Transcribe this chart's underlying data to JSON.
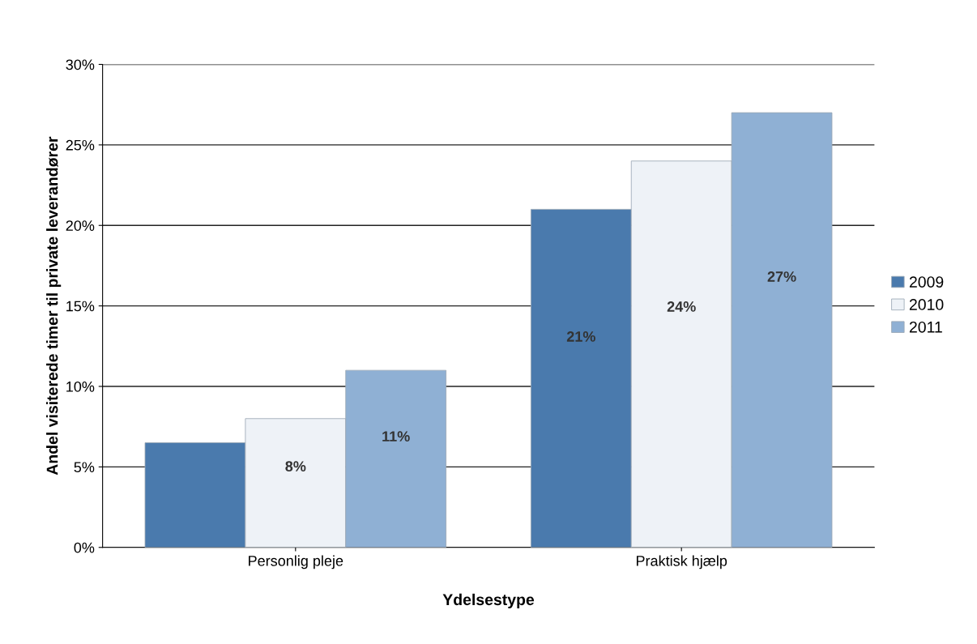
{
  "chart_data": {
    "type": "bar",
    "xlabel": "Ydelsestype",
    "ylabel": "Andel visiterede timer til private leverandører",
    "categories": [
      "Personlig pleje",
      "Praktisk hjælp"
    ],
    "series": [
      {
        "name": "2009",
        "color": "#4a7aad",
        "values": [
          6.5,
          21
        ],
        "value_labels": [
          null,
          "21%"
        ]
      },
      {
        "name": "2010",
        "color": "#eef2f7",
        "values": [
          8,
          24
        ],
        "value_labels": [
          "8%",
          "24%"
        ]
      },
      {
        "name": "2011",
        "color": "#8fb0d4",
        "values": [
          11,
          27
        ],
        "value_labels": [
          "11%",
          "27%"
        ]
      }
    ],
    "ylim": [
      0,
      30
    ],
    "yticks": [
      {
        "value": 0,
        "label": "0%"
      },
      {
        "value": 5,
        "label": "5%"
      },
      {
        "value": 10,
        "label": "10%"
      },
      {
        "value": 15,
        "label": "15%"
      },
      {
        "value": 20,
        "label": "20%"
      },
      {
        "value": 25,
        "label": "25%"
      },
      {
        "value": 30,
        "label": "30%"
      }
    ],
    "grid": "y",
    "legend": "right"
  }
}
